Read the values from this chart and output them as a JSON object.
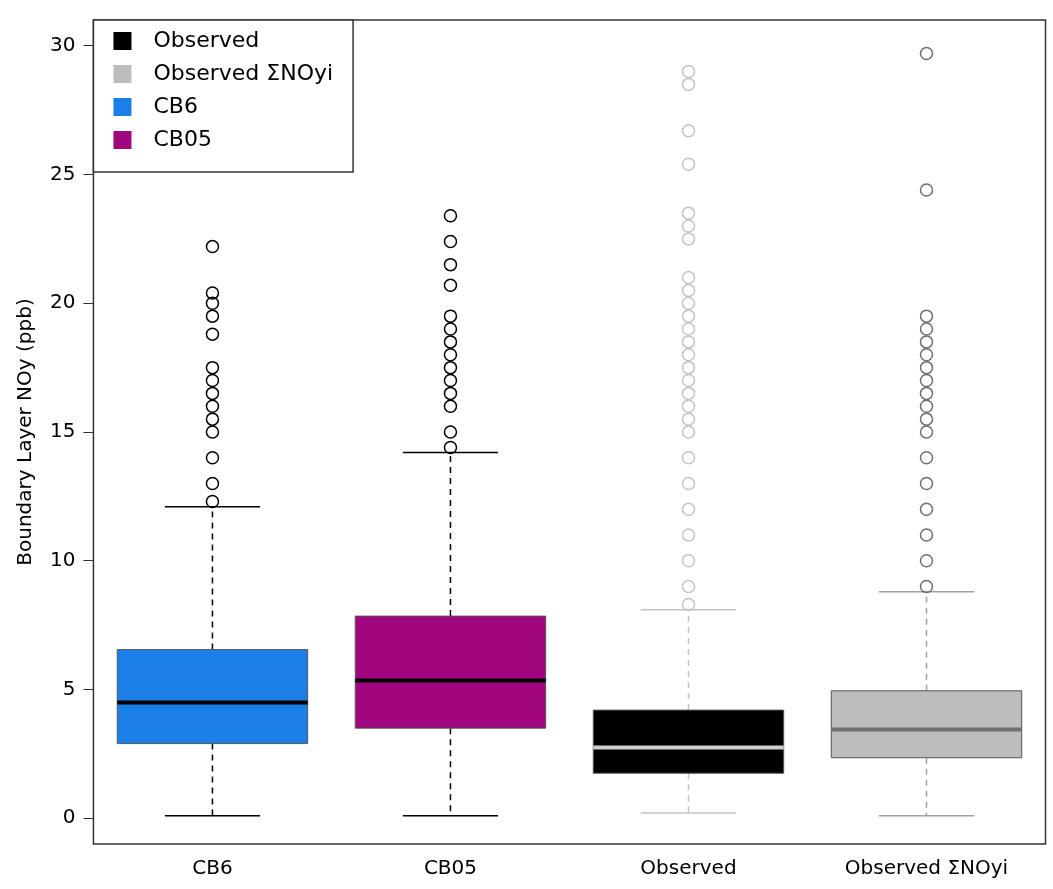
{
  "chart_data": {
    "type": "box",
    "ylabel": "Boundary Layer NOy (ppb)",
    "categories": [
      "CB6",
      "CB05",
      "Observed",
      "Observed ΣNOyi"
    ],
    "ylim": [
      -1,
      31
    ],
    "yticks": [
      0,
      5,
      10,
      15,
      20,
      25,
      30
    ],
    "grid": false,
    "legend": "top left",
    "line_style": "dashed",
    "marker": "circle",
    "series": [
      {
        "name": "Observed",
        "color": "#000000",
        "boxes": [
          null,
          null,
          {
            "low": 0.2,
            "q1": 1.75,
            "median": 2.75,
            "q3": 4.2,
            "high": 8.1,
            "outliers": [
              8.3,
              9,
              10,
              11,
              12,
              13,
              14,
              15,
              15.5,
              16,
              16.5,
              17,
              17.5,
              18,
              18.5,
              19,
              19.5,
              20,
              20.5,
              21,
              22.5,
              23,
              23.5,
              25.4,
              26.7,
              28.5,
              29
            ]
          },
          null
        ]
      },
      {
        "name": "Observed ΣNOyi",
        "color": "#bdbdbd",
        "boxes": [
          null,
          null,
          null,
          {
            "low": 0.1,
            "q1": 2.35,
            "median": 3.45,
            "q3": 4.95,
            "high": 8.8,
            "outliers": [
              9,
              10,
              11,
              12,
              13,
              14,
              15,
              15.5,
              16,
              16.5,
              17,
              17.5,
              18,
              18.5,
              19,
              19.5,
              24.4,
              29.7
            ]
          }
        ]
      },
      {
        "name": "CB6",
        "color": "#1a7fe6",
        "boxes": [
          {
            "low": 0.1,
            "q1": 2.9,
            "median": 4.5,
            "q3": 6.55,
            "high": 12.1,
            "outliers": [
              12.3,
              13,
              14,
              15,
              15.5,
              16,
              16.5,
              17,
              17.5,
              18.8,
              19.5,
              20,
              20.4,
              22.2
            ]
          },
          null,
          null,
          null
        ]
      },
      {
        "name": "CB05",
        "color": "#a0067e",
        "boxes": [
          null,
          {
            "low": 0.1,
            "q1": 3.5,
            "median": 5.35,
            "q3": 7.85,
            "high": 14.2,
            "outliers": [
              14.4,
              15,
              16,
              16.5,
              17,
              17.5,
              18,
              18.5,
              19,
              19.5,
              20.7,
              21.5,
              22.4,
              23.4
            ]
          },
          null,
          null
        ]
      }
    ]
  }
}
